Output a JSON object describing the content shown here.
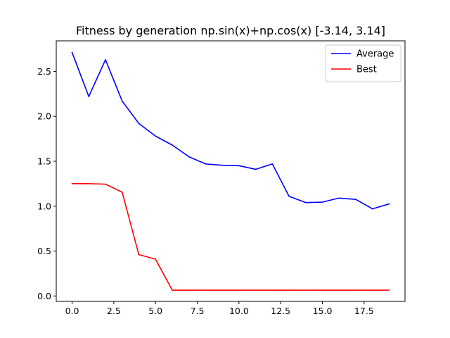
{
  "chart_data": {
    "type": "line",
    "title": "Fitness by generation np.sin(x)+np.cos(x) [-3.14, 3.14]",
    "xlabel": "",
    "ylabel": "",
    "x": [
      0,
      1,
      2,
      3,
      4,
      5,
      6,
      7,
      8,
      9,
      10,
      11,
      12,
      13,
      14,
      15,
      16,
      17,
      18,
      19
    ],
    "xlim": [
      -0.95,
      19.95
    ],
    "ylim": [
      -0.06,
      2.84
    ],
    "xticks": [
      0.0,
      2.5,
      5.0,
      7.5,
      10.0,
      12.5,
      15.0,
      17.5
    ],
    "xtick_labels": [
      "0.0",
      "2.5",
      "5.0",
      "7.5",
      "10.0",
      "12.5",
      "15.0",
      "17.5"
    ],
    "yticks": [
      0.0,
      0.5,
      1.0,
      1.5,
      2.0,
      2.5
    ],
    "ytick_labels": [
      "0.0",
      "0.5",
      "1.0",
      "1.5",
      "2.0",
      "2.5"
    ],
    "grid": false,
    "legend_position": "top-right",
    "series": [
      {
        "name": "Average",
        "color": "#0000ff",
        "values": [
          2.71,
          2.22,
          2.63,
          2.17,
          1.92,
          1.78,
          1.68,
          1.55,
          1.47,
          1.455,
          1.45,
          1.41,
          1.47,
          1.11,
          1.04,
          1.045,
          1.09,
          1.075,
          0.97,
          1.025
        ]
      },
      {
        "name": "Best",
        "color": "#ff0000",
        "values": [
          1.25,
          1.25,
          1.245,
          1.155,
          0.46,
          0.41,
          0.065,
          0.065,
          0.065,
          0.065,
          0.065,
          0.065,
          0.065,
          0.065,
          0.065,
          0.065,
          0.065,
          0.065,
          0.065,
          0.065
        ]
      }
    ]
  }
}
